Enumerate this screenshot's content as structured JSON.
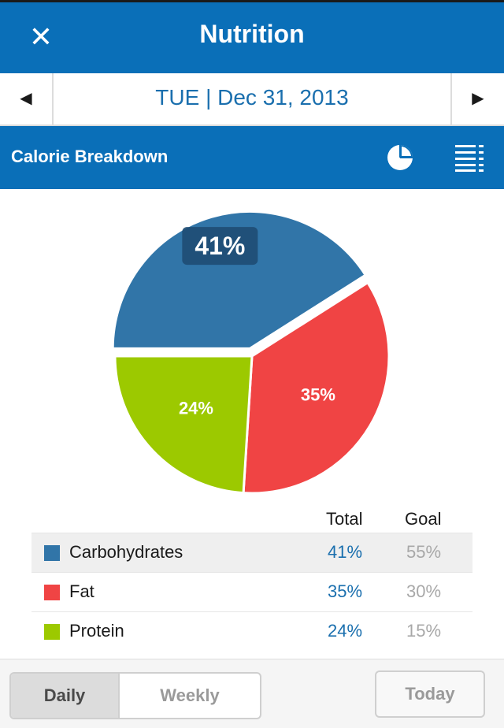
{
  "header": {
    "title": "Nutrition",
    "close_icon": "close-icon"
  },
  "datebar": {
    "date": "TUE | Dec 31, 2013",
    "prev_icon": "prev-day-arrow-icon",
    "next_icon": "next-day-arrow-icon"
  },
  "section": {
    "label": "Calorie Breakdown",
    "icons": [
      "pie-chart-icon",
      "list-view-icon"
    ]
  },
  "chart_data": {
    "type": "pie",
    "categories": [
      "Carbohydrates",
      "Fat",
      "Protein"
    ],
    "values": [
      41,
      35,
      24
    ],
    "labels": [
      "41%",
      "35%",
      "24%"
    ],
    "colors": [
      "#3175a8",
      "#f04444",
      "#9cc900"
    ],
    "exploded_slice": "Carbohydrates"
  },
  "table": {
    "headers": {
      "total": "Total",
      "goal": "Goal"
    },
    "rows": [
      {
        "name": "Carbohydrates",
        "total": "41%",
        "goal": "55%",
        "color": "#3175a8",
        "selected": true
      },
      {
        "name": "Fat",
        "total": "35%",
        "goal": "30%",
        "color": "#f04444",
        "selected": false
      },
      {
        "name": "Protein",
        "total": "24%",
        "goal": "15%",
        "color": "#9cc900",
        "selected": false
      }
    ]
  },
  "bottombar": {
    "daily": "Daily",
    "weekly": "Weekly",
    "today": "Today",
    "active": "Daily"
  }
}
